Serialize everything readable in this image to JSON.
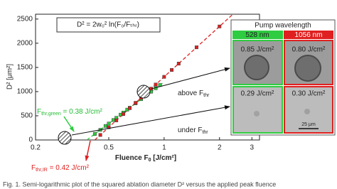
{
  "chart_data": {
    "type": "scatter",
    "xscale": "log",
    "xlim": [
      0.2,
      3.3
    ],
    "ylim": [
      0,
      2600
    ],
    "xticks": [
      0.2,
      0.5,
      1,
      2,
      3
    ],
    "yticks": [
      0,
      500,
      1000,
      1500,
      2000,
      2500
    ],
    "xlabel": {
      "main": "Fluence F",
      "sub": "0",
      "rest": " [J/cm²]"
    },
    "ylabel": "D² [μm²]",
    "series": [
      {
        "name": "528 nm",
        "color": "#2ecc40",
        "x": [
          0.42,
          0.45,
          0.48,
          0.5,
          0.53,
          0.55,
          0.58,
          0.6,
          0.63,
          0.65,
          0.7,
          0.75,
          0.8,
          0.85,
          0.9,
          0.95
        ],
        "values": [
          124,
          210,
          290,
          340,
          412,
          458,
          524,
          566,
          627,
          666,
          758,
          843,
          923,
          998,
          1069,
          1136
        ]
      },
      {
        "name": "1056 nm",
        "color": "#e02020",
        "x": [
          0.45,
          0.5,
          0.55,
          0.6,
          0.65,
          0.7,
          0.75,
          0.8,
          0.85,
          0.9,
          1.0,
          1.1,
          1.2,
          1.5,
          2.0
        ],
        "values": [
          104,
          262,
          405,
          536,
          657,
          768,
          872,
          969,
          1061,
          1146,
          1305,
          1448,
          1579,
          1915,
          2347
        ]
      }
    ],
    "fits": [
      {
        "color": "#2ecc40",
        "x": [
          0.38,
          1.0
        ],
        "values": [
          0,
          1200
        ]
      },
      {
        "color": "#e02020",
        "x": [
          0.42,
          2.35
        ],
        "values": [
          0,
          2590
        ]
      }
    ]
  },
  "formula": "D² = 2w₀² ln(F₀/Fₜₕᵣ)",
  "annotations": {
    "green_threshold": {
      "main": "F",
      "sub": "thr,green",
      "rest": " = 0.38 J/cm²"
    },
    "ir_threshold": {
      "main": "F",
      "sub": "thr,IR",
      "rest": " = 0.42 J/cm²"
    },
    "above": {
      "main": "above F",
      "sub": "thr"
    },
    "under": {
      "main": "under F",
      "sub": "thr"
    }
  },
  "panel": {
    "title": "Pump wavelength",
    "images": [
      [
        "0.85 J/cm²",
        "0.80 J/cm²"
      ],
      [
        "0.29 J/cm²",
        "0.30 J/cm²"
      ]
    ],
    "scale_bar": "25 μm"
  },
  "caption": "Fig. 1. Semi-logarithmic plot of the squared ablation diameter D² versus the applied peak fluence"
}
